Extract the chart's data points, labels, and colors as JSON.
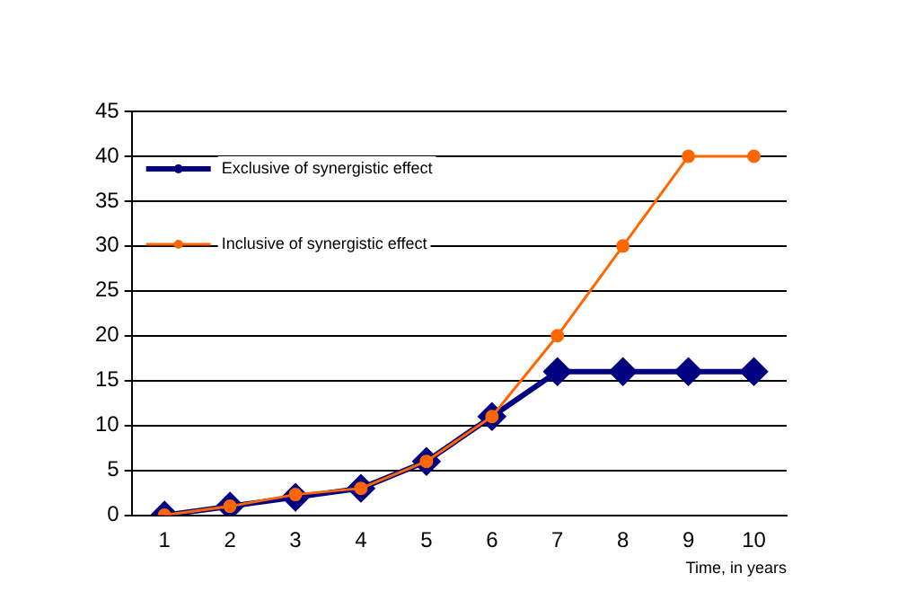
{
  "chart_data": {
    "type": "line",
    "xlabel": "Time, in years",
    "categories": [
      "1",
      "2",
      "3",
      "4",
      "5",
      "6",
      "7",
      "8",
      "9",
      "10"
    ],
    "series": [
      {
        "name": "Exclusive of synergistic effect",
        "color": "#000080",
        "marker": "diamond",
        "values": [
          0,
          1,
          2,
          3,
          6,
          11,
          16,
          16,
          16,
          16
        ]
      },
      {
        "name": "Inclusive of synergistic effect",
        "color": "#ff6600",
        "marker": "circle",
        "values": [
          0,
          1,
          2.3,
          3,
          6,
          11,
          20,
          30,
          40,
          40
        ]
      }
    ],
    "ylim": [
      0,
      45
    ],
    "yticks": [
      0,
      5,
      10,
      15,
      20,
      25,
      30,
      35,
      40,
      45
    ],
    "grid": "y",
    "legend": "top left"
  }
}
